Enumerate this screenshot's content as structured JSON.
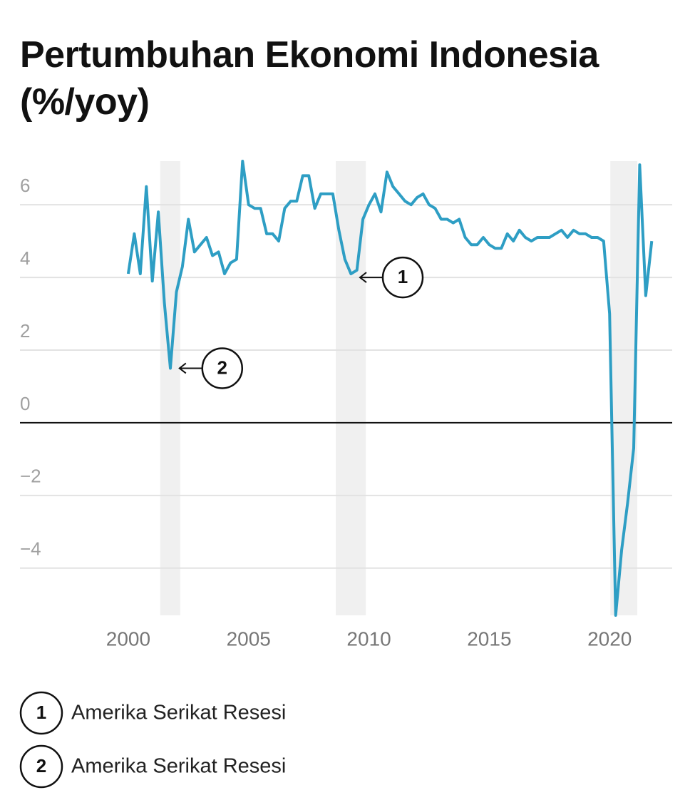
{
  "chart_data": {
    "type": "line",
    "title": "Pertumbuhan Ekonomi Indonesia (%/yoy)",
    "x": [
      2000,
      2000.25,
      2000.5,
      2000.75,
      2001,
      2001.25,
      2001.5,
      2001.75,
      2002,
      2002.25,
      2002.5,
      2002.75,
      2003,
      2003.25,
      2003.5,
      2003.75,
      2004,
      2004.25,
      2004.5,
      2004.75,
      2005,
      2005.25,
      2005.5,
      2005.75,
      2006,
      2006.25,
      2006.5,
      2006.75,
      2007,
      2007.25,
      2007.5,
      2007.75,
      2008,
      2008.25,
      2008.5,
      2008.75,
      2009,
      2009.25,
      2009.5,
      2009.75,
      2010,
      2010.25,
      2010.5,
      2010.75,
      2011,
      2011.25,
      2011.5,
      2011.75,
      2012,
      2012.25,
      2012.5,
      2012.75,
      2013,
      2013.25,
      2013.5,
      2013.75,
      2014,
      2014.25,
      2014.5,
      2014.75,
      2015,
      2015.25,
      2015.5,
      2015.75,
      2016,
      2016.25,
      2016.5,
      2016.75,
      2017,
      2017.25,
      2017.5,
      2017.75,
      2018,
      2018.25,
      2018.5,
      2018.75,
      2019,
      2019.25,
      2019.5,
      2019.75,
      2020,
      2020.25,
      2020.5,
      2020.75,
      2021,
      2021.25,
      2021.5,
      2021.75
    ],
    "values": [
      4.1,
      5.2,
      4.1,
      6.5,
      3.9,
      5.8,
      3.3,
      1.5,
      3.6,
      4.3,
      5.6,
      4.7,
      4.9,
      5.1,
      4.6,
      4.7,
      4.1,
      4.4,
      4.5,
      7.2,
      6.0,
      5.9,
      5.9,
      5.2,
      5.2,
      5.0,
      5.9,
      6.1,
      6.1,
      6.8,
      6.8,
      5.9,
      6.3,
      6.3,
      6.3,
      5.3,
      4.5,
      4.1,
      4.2,
      5.6,
      6.0,
      6.3,
      5.8,
      6.9,
      6.5,
      6.3,
      6.1,
      6.0,
      6.2,
      6.3,
      6.0,
      5.9,
      5.6,
      5.6,
      5.5,
      5.6,
      5.1,
      4.9,
      4.9,
      5.1,
      4.9,
      4.8,
      4.8,
      5.2,
      5.0,
      5.3,
      5.1,
      5.0,
      5.1,
      5.1,
      5.1,
      5.2,
      5.3,
      5.1,
      5.3,
      5.2,
      5.2,
      5.1,
      5.1,
      5.0,
      3.0,
      -5.3,
      -3.5,
      -2.2,
      -0.7,
      7.1,
      3.5,
      5.0
    ],
    "color": "#2e9ec4",
    "xlim": [
      1995.5,
      2022.6
    ],
    "xticks": [
      2000,
      2005,
      2010,
      2015,
      2020
    ],
    "ylim": [
      -5.3,
      7.2
    ],
    "yticks": [
      {
        "value": -4,
        "label": "−4"
      },
      {
        "value": -2,
        "label": "−2"
      },
      0,
      2,
      4,
      6
    ],
    "grid": true,
    "shading": [
      [
        2001.33,
        2002.16
      ],
      [
        2008.62,
        2009.87
      ],
      [
        2020.03,
        2021.15
      ]
    ],
    "annotations": [
      {
        "label": "1",
        "x": 2009.45,
        "y": 4.0
      },
      {
        "label": "2",
        "x": 2001.95,
        "y": 1.5
      }
    ],
    "legend": [
      {
        "label": "1",
        "text": "Amerika Serikat Resesi"
      },
      {
        "label": "2",
        "text": "Amerika Serikat Resesi"
      }
    ]
  }
}
